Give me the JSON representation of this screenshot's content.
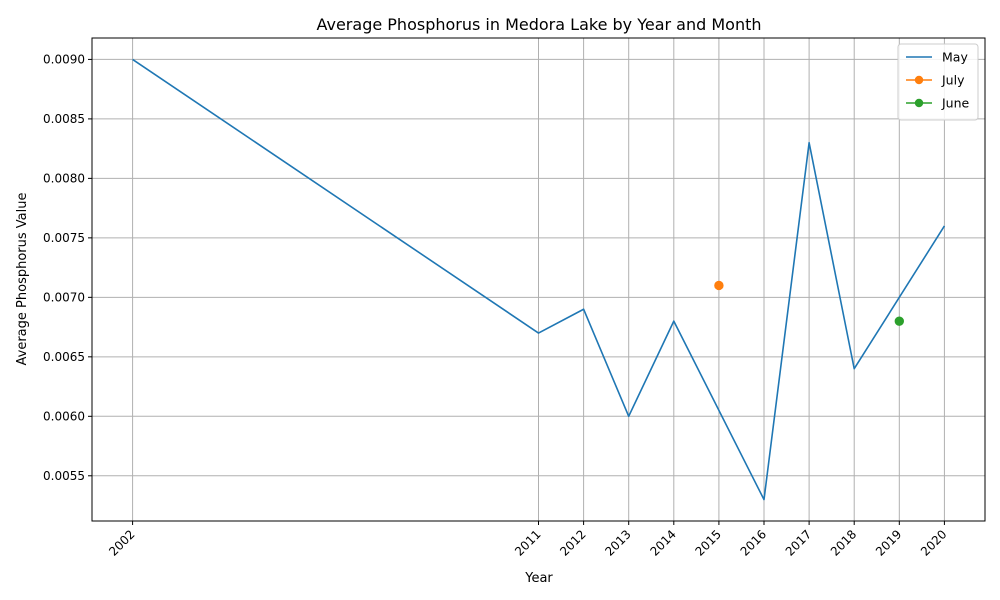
{
  "chart_data": {
    "type": "line",
    "title": "Average Phosphorus in Medora Lake by Year and Month",
    "xlabel": "Year",
    "ylabel": "Average Phosphorus Value",
    "x_ticks": [
      "2002",
      "2011",
      "2012",
      "2013",
      "2014",
      "2015",
      "2016",
      "2017",
      "2018",
      "2019",
      "2020"
    ],
    "y_ticks": [
      "0.0055",
      "0.0060",
      "0.0065",
      "0.0070",
      "0.0075",
      "0.0080",
      "0.0085",
      "0.0090"
    ],
    "xlim": [
      2001.1,
      2020.9
    ],
    "ylim": [
      0.00512,
      0.00918
    ],
    "grid": true,
    "legend_position": "top-right",
    "series": [
      {
        "name": "May",
        "color": "#1f77b4",
        "marker": "none",
        "x": [
          2002,
          2011,
          2012,
          2013,
          2014,
          2016,
          2017,
          2018,
          2020
        ],
        "y": [
          0.009,
          0.0067,
          0.0069,
          0.006,
          0.0068,
          0.0053,
          0.0083,
          0.0064,
          0.0076
        ]
      },
      {
        "name": "July",
        "color": "#ff7f0e",
        "marker": "circle",
        "x": [
          2015
        ],
        "y": [
          0.0071
        ]
      },
      {
        "name": "June",
        "color": "#2ca02c",
        "marker": "circle",
        "x": [
          2019
        ],
        "y": [
          0.0068
        ]
      }
    ]
  }
}
